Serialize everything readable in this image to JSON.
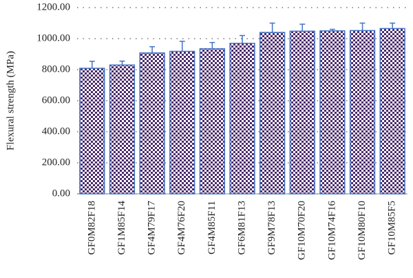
{
  "chart_data": {
    "type": "bar",
    "y_label": "Flexural strength (MPa)",
    "categories": [
      "GF0M82F18",
      "GF1M85F14",
      "GF4M79F17",
      "GF4M76F20",
      "GF4M85F11",
      "GF6M81F13",
      "GF9M78F13",
      "GF10M70F20",
      "GF10M74F16",
      "GF10M80F10",
      "GF10M85F5"
    ],
    "values": [
      809,
      830,
      908,
      918,
      935,
      970,
      1040,
      1048,
      1050,
      1052,
      1065
    ],
    "errors": [
      45,
      25,
      40,
      65,
      40,
      50,
      60,
      45,
      10,
      48,
      35
    ],
    "color": "#4b2a6b",
    "edge_color": "#4472c4",
    "ylim": [
      0,
      1200
    ],
    "yticks": [
      {
        "value": 0,
        "label": "0.00"
      },
      {
        "value": 200,
        "label": "200.00"
      },
      {
        "value": 400,
        "label": "400.00"
      },
      {
        "value": 600,
        "label": "600.00"
      },
      {
        "value": 800,
        "label": "800.00"
      },
      {
        "value": 1000,
        "label": "1000.00"
      },
      {
        "value": 1200,
        "label": "1200.00"
      }
    ],
    "grid": true
  }
}
